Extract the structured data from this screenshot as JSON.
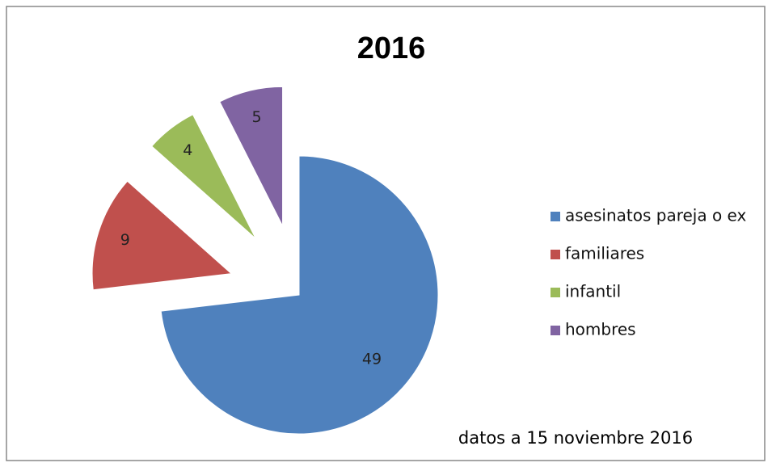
{
  "chart_data": {
    "type": "pie",
    "title": "2016",
    "categories": [
      "asesinatos pareja o ex",
      "familiares",
      "infantil",
      "hombres"
    ],
    "values": [
      49,
      9,
      4,
      5
    ],
    "colors": [
      "#4f81bd",
      "#c0504d",
      "#9bbb59",
      "#8064a2"
    ],
    "legend": "right",
    "annotation": "datos a 15 noviembre 2016"
  }
}
